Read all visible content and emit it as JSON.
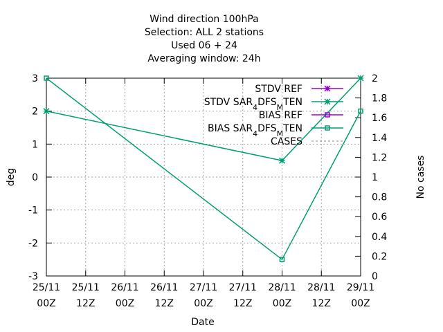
{
  "chart_data": {
    "type": "line",
    "title_lines": [
      "Wind direction 100hPa",
      "Selection: ALL       2 stations",
      "Used  06  + 24",
      "Averaging window: 24h"
    ],
    "xlabel": "Date",
    "ylabel": "deg",
    "y2label": "No cases",
    "x_ticks": [
      {
        "top": "25/11",
        "bottom": "00Z",
        "hours": 0
      },
      {
        "top": "25/11",
        "bottom": "12Z",
        "hours": 12
      },
      {
        "top": "26/11",
        "bottom": "00Z",
        "hours": 24
      },
      {
        "top": "26/11",
        "bottom": "12Z",
        "hours": 36
      },
      {
        "top": "27/11",
        "bottom": "00Z",
        "hours": 48
      },
      {
        "top": "27/11",
        "bottom": "12Z",
        "hours": 60
      },
      {
        "top": "28/11",
        "bottom": "00Z",
        "hours": 72
      },
      {
        "top": "28/11",
        "bottom": "12Z",
        "hours": 84
      },
      {
        "top": "29/11",
        "bottom": "00Z",
        "hours": 96
      }
    ],
    "xlim_hours": [
      0,
      96
    ],
    "ylim": [
      -3,
      3
    ],
    "y_ticks": [
      "-3",
      "-2",
      "-1",
      "0",
      "1",
      "2",
      "3"
    ],
    "y2lim": [
      0,
      2
    ],
    "y2_ticks": [
      "0",
      "0.2",
      "0.4",
      "0.6",
      "0.8",
      "1",
      "1.2",
      "1.4",
      "1.6",
      "1.8",
      "2"
    ],
    "grid": true,
    "legend_position": "top-right",
    "series": [
      {
        "name": "STDV REF",
        "name_parts": [
          [
            "STDV REF",
            ""
          ]
        ],
        "color": "#9400D3",
        "marker": "star",
        "axis": "y",
        "x_hours": [],
        "values": []
      },
      {
        "name": "STDV SAR4DFSMTEN",
        "name_parts": [
          [
            "STDV SAR",
            ""
          ],
          [
            "4",
            "sub"
          ],
          [
            "D",
            ""
          ],
          [
            "FS",
            ""
          ],
          [
            "M",
            "sub"
          ],
          [
            "TEN",
            ""
          ]
        ],
        "color": "#009E73",
        "marker": "star",
        "axis": "y",
        "x_hours": [
          0,
          72,
          96
        ],
        "values": [
          2,
          0.5,
          3
        ]
      },
      {
        "name": "BIAS REF",
        "name_parts": [
          [
            "BIAS REF",
            ""
          ]
        ],
        "color": "#9400D3",
        "marker": "square",
        "axis": "y",
        "x_hours": [],
        "values": []
      },
      {
        "name": "BIAS SAR4DFSMTEN",
        "name_parts": [
          [
            "BIAS SAR",
            ""
          ],
          [
            "4",
            "sub"
          ],
          [
            "D",
            ""
          ],
          [
            "FS",
            ""
          ],
          [
            "M",
            "sub"
          ],
          [
            "TEN",
            ""
          ]
        ],
        "color": "#009E73",
        "marker": "square",
        "axis": "y",
        "x_hours": [
          0,
          72,
          96
        ],
        "values": [
          3,
          -2.5,
          2
        ]
      },
      {
        "name": "CASES",
        "name_parts": [
          [
            "CASES",
            ""
          ]
        ],
        "color": "#888888",
        "marker": "none",
        "dashed": true,
        "axis": "y2",
        "x_hours": [],
        "values": []
      }
    ]
  }
}
